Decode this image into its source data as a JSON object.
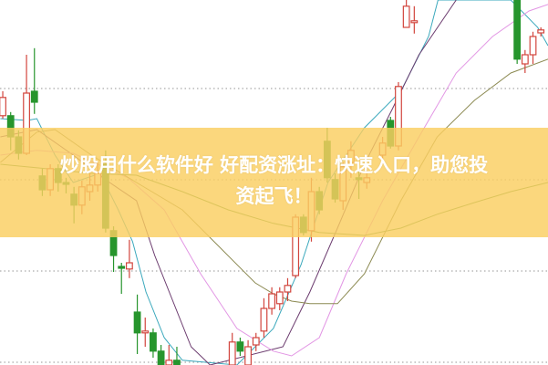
{
  "overlay": {
    "title_line1": "炒股用什么软件好 好配资涨址：快速入口，助您投",
    "title_line2": "资起飞！",
    "banner_color": "#facd60"
  },
  "chart_data": {
    "type": "candlestick",
    "title": "",
    "xlabel": "",
    "ylabel": "",
    "x_range": [
      -0.35,
      68.9
    ],
    "ylim": [
      0,
      100
    ],
    "grid": "horizontal dotted",
    "gridlines": [
      75.75,
      50.75,
      25.75,
      0.75
    ],
    "colors": {
      "up": "#d2453d",
      "down": "#27952d",
      "grid": "#aaaaaa"
    },
    "candles_format": [
      "index",
      "open",
      "high",
      "low",
      "close"
    ],
    "candles": [
      [
        0,
        68.3,
        75,
        67.5,
        73.3
      ],
      [
        1,
        68.3,
        69.3,
        58.8,
        62.5
      ],
      [
        2,
        62.5,
        64.3,
        56.3,
        58
      ],
      [
        3,
        58,
        85,
        57.5,
        74.5
      ],
      [
        4,
        75,
        86.8,
        68.8,
        72
      ],
      [
        5,
        51.8,
        53.8,
        46.3,
        48
      ],
      [
        6,
        48,
        55,
        46.3,
        53.8
      ],
      [
        7,
        53.8,
        55,
        47.5,
        50
      ],
      [
        8,
        50,
        51.3,
        47,
        49.5
      ],
      [
        9,
        46.8,
        48.8,
        38.8,
        43.8
      ],
      [
        10,
        43.8,
        50.5,
        41.3,
        48.8
      ],
      [
        11,
        47.5,
        52.5,
        45,
        49.3
      ],
      [
        12,
        49.3,
        55.5,
        47.5,
        52.5
      ],
      [
        13,
        55,
        58.8,
        36.3,
        37.5
      ],
      [
        14,
        36.8,
        38,
        25.5,
        30
      ],
      [
        15,
        27,
        28,
        19.5,
        26.5
      ],
      [
        16,
        26.3,
        34.3,
        23.8,
        28
      ],
      [
        17,
        14.5,
        19.3,
        3,
        8.8
      ],
      [
        18,
        8.8,
        13,
        5,
        9.3
      ],
      [
        19,
        8.8,
        10,
        2,
        3.8
      ],
      [
        20,
        3.8,
        5.5,
        -1,
        0
      ],
      [
        21,
        0,
        5.5,
        -1,
        1.3
      ],
      [
        22,
        1.3,
        5,
        -1,
        0
      ],
      [
        29,
        0,
        8.8,
        -1,
        6.3
      ],
      [
        30,
        6.3,
        7.5,
        2.5,
        3.8
      ],
      [
        31,
        0,
        6.8,
        -1,
        5
      ],
      [
        32,
        5.5,
        8.8,
        3.8,
        7.5
      ],
      [
        33,
        9.3,
        18.3,
        7.5,
        15.5
      ],
      [
        34,
        15.5,
        21.3,
        13.8,
        19.5
      ],
      [
        35,
        16.8,
        21.3,
        15,
        20
      ],
      [
        36,
        20,
        23.8,
        17.5,
        21.8
      ],
      [
        37,
        24.5,
        41.3,
        23.8,
        40.5
      ],
      [
        38,
        40.5,
        41.3,
        35.5,
        36.3
      ],
      [
        39,
        36.8,
        51.3,
        33.8,
        47.5
      ],
      [
        40,
        47.5,
        48.8,
        41.3,
        42.5
      ],
      [
        41,
        61.3,
        65,
        50,
        51.3
      ],
      [
        42,
        50.8,
        52.5,
        44.5,
        45.5
      ],
      [
        43,
        45,
        55.5,
        42.5,
        54.3
      ],
      [
        44,
        55.5,
        61.3,
        51.3,
        58.8
      ],
      [
        45,
        51.3,
        53.8,
        45.5,
        50.8
      ],
      [
        46,
        50,
        53.8,
        48.3,
        51.3
      ],
      [
        48,
        57.5,
        62.5,
        55,
        60.8
      ],
      [
        49,
        67,
        68,
        59.3,
        60
      ],
      [
        50,
        60,
        77.5,
        58.8,
        76.3
      ],
      [
        51,
        92.5,
        100,
        92.5,
        98.3
      ],
      [
        52,
        93.8,
        98.3,
        90.8,
        94.3
      ],
      [
        65,
        100,
        100,
        82.5,
        83.8
      ],
      [
        66,
        82.5,
        86.3,
        80,
        85
      ],
      [
        67,
        85,
        91.3,
        82.5,
        90
      ],
      [
        68,
        91,
        92.5,
        90,
        91.8
      ]
    ],
    "series": [
      {
        "color": "#3aa8bc",
        "points": [
          [
            -0.3,
            67.5
          ],
          [
            3.1,
            67
          ],
          [
            4.3,
            67.5
          ],
          [
            6.6,
            57.5
          ],
          [
            8.9,
            50
          ],
          [
            12.3,
            52.5
          ],
          [
            14.6,
            42.5
          ],
          [
            16.4,
            33.8
          ],
          [
            18.1,
            20
          ],
          [
            20.4,
            7.5
          ],
          [
            22.7,
            1.3
          ],
          [
            29.6,
            0
          ],
          [
            34.2,
            10
          ],
          [
            37.7,
            27.5
          ],
          [
            41.1,
            50
          ],
          [
            45.7,
            65
          ],
          [
            50.3,
            75
          ],
          [
            53.8,
            90
          ],
          [
            55,
            100
          ],
          [
            64.2,
            100
          ],
          [
            67.6,
            92.5
          ],
          [
            68.9,
            87.5
          ]
        ]
      },
      {
        "color": "#6b3b6e",
        "points": [
          [
            -0.3,
            62.5
          ],
          [
            4.3,
            64.5
          ],
          [
            8.9,
            57.5
          ],
          [
            13.5,
            50
          ],
          [
            16.9,
            45
          ],
          [
            19.2,
            30
          ],
          [
            21.5,
            17.5
          ],
          [
            23.8,
            5
          ],
          [
            26.2,
            0
          ],
          [
            35.4,
            5
          ],
          [
            38.8,
            20
          ],
          [
            42.3,
            37.5
          ],
          [
            45.7,
            55
          ],
          [
            49.2,
            70
          ],
          [
            52.6,
            85
          ],
          [
            57.3,
            100
          ]
        ]
      },
      {
        "color": "#e296e4",
        "points": [
          [
            -0.3,
            57.5
          ],
          [
            4.3,
            58.8
          ],
          [
            8.9,
            58
          ],
          [
            15.8,
            51.3
          ],
          [
            20.4,
            42.5
          ],
          [
            25,
            25
          ],
          [
            29.6,
            10
          ],
          [
            34.2,
            3.8
          ],
          [
            36.5,
            2.5
          ],
          [
            40,
            7.5
          ],
          [
            43.4,
            25
          ],
          [
            48,
            45
          ],
          [
            52.6,
            62.5
          ],
          [
            57.3,
            80
          ],
          [
            61.9,
            90
          ],
          [
            66.5,
            97
          ],
          [
            68.9,
            98.8
          ]
        ]
      },
      {
        "color": "#8c8a52",
        "points": [
          [
            -0.3,
            55.5
          ],
          [
            4.3,
            63.8
          ],
          [
            6.6,
            64.5
          ],
          [
            11.2,
            57.5
          ],
          [
            16.9,
            50
          ],
          [
            22.7,
            42.5
          ],
          [
            27.3,
            32.5
          ],
          [
            31.9,
            22.5
          ],
          [
            34.2,
            19.5
          ],
          [
            36.5,
            17.5
          ],
          [
            38.8,
            16.8
          ],
          [
            42.3,
            16.8
          ],
          [
            45.7,
            25
          ],
          [
            50.3,
            45
          ],
          [
            54.9,
            62.5
          ],
          [
            59.6,
            72.5
          ],
          [
            64.2,
            80
          ],
          [
            68.9,
            83.8
          ]
        ]
      },
      {
        "color": "#5c9446",
        "points": [
          [
            -0.3,
            55
          ],
          [
            5.4,
            53.8
          ],
          [
            11.2,
            52.5
          ],
          [
            16.9,
            52
          ],
          [
            22.7,
            47.5
          ],
          [
            28.5,
            42.5
          ],
          [
            34.2,
            38.8
          ],
          [
            40,
            36.3
          ],
          [
            45.7,
            35.5
          ],
          [
            50.3,
            37.5
          ],
          [
            54.9,
            41.3
          ],
          [
            59.6,
            44.5
          ],
          [
            64.2,
            47.5
          ],
          [
            68.9,
            50
          ]
        ]
      }
    ]
  }
}
